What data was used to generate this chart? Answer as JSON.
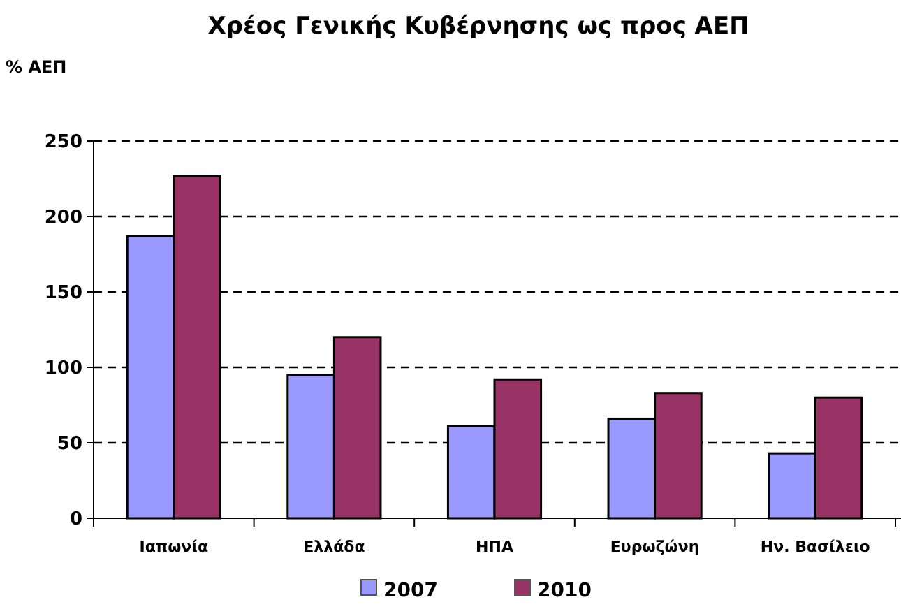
{
  "chart_data": {
    "type": "bar",
    "title": "Χρέος Γενικής Κυβέρνησης ως προς ΑΕΠ",
    "ylabel": "% ΑΕΠ",
    "categories": [
      "Ιαπωνία",
      "Ελλάδα",
      "ΗΠΑ",
      "Ευρωζώνη",
      "Ην. Βασίλειο"
    ],
    "series": [
      {
        "name": "2007",
        "color": "#9999ff",
        "values": [
          187,
          95,
          61,
          66,
          43
        ]
      },
      {
        "name": "2010",
        "color": "#993366",
        "values": [
          227,
          120,
          92,
          83,
          80
        ]
      }
    ],
    "ylim": [
      0,
      250
    ],
    "yticks": [
      0,
      50,
      100,
      150,
      200,
      250
    ],
    "grid": "y",
    "line_style": "dashed",
    "legend": "bottom"
  }
}
